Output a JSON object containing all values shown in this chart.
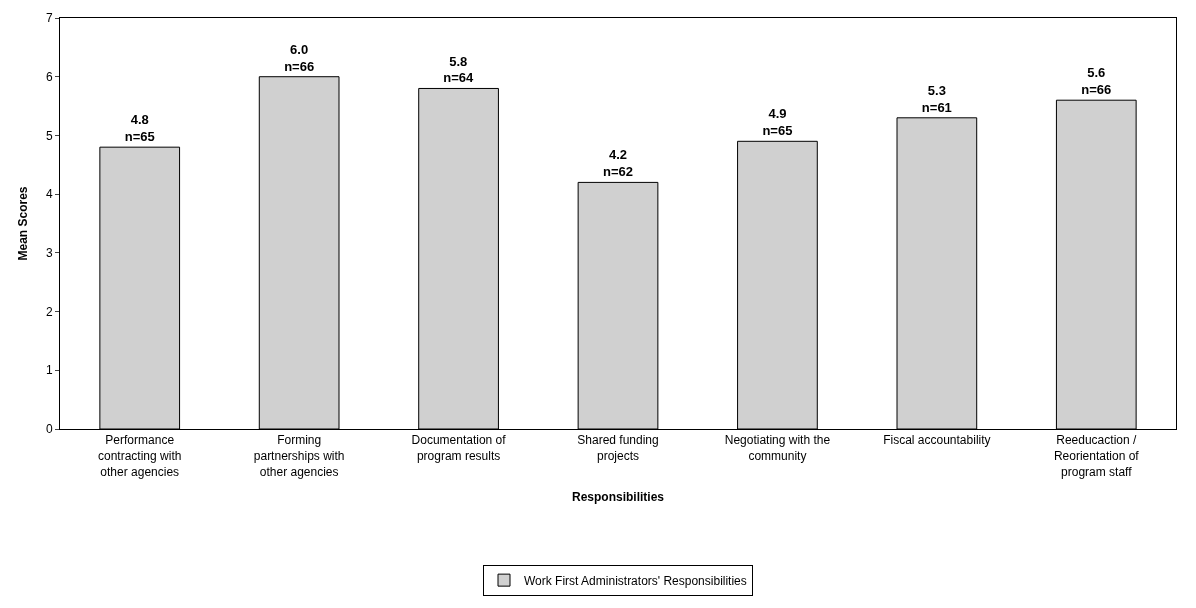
{
  "chart_data": {
    "type": "bar",
    "xlabel": "Responsibilities",
    "ylabel": "Mean Scores",
    "categories": [
      "Performance\ncontracting with\nother agencies",
      "Forming\npartnerships with\nother agencies",
      "Documentation of\nprogram results",
      "Shared funding\nprojects",
      "Negotiating with the\ncommunity",
      "Fiscal accountability",
      "Reeducaction /\nReorientation of\nprogram staff"
    ],
    "series": [
      {
        "name": "Work First Administrators' Responsibilities",
        "color": "#d0d0d0",
        "values": [
          4.8,
          6.0,
          5.8,
          4.2,
          4.9,
          5.3,
          5.6
        ],
        "value_labels": [
          "4.8\nn=65",
          "6.0\nn=66",
          "5.8\nn=64",
          "4.2\nn=62",
          "4.9\nn=65",
          "5.3\nn=61",
          "5.6\nn=66"
        ]
      }
    ],
    "ylim": [
      0,
      7
    ],
    "yticks": [
      0,
      1,
      2,
      3,
      4,
      5,
      6,
      7
    ],
    "legend": "bottom"
  }
}
